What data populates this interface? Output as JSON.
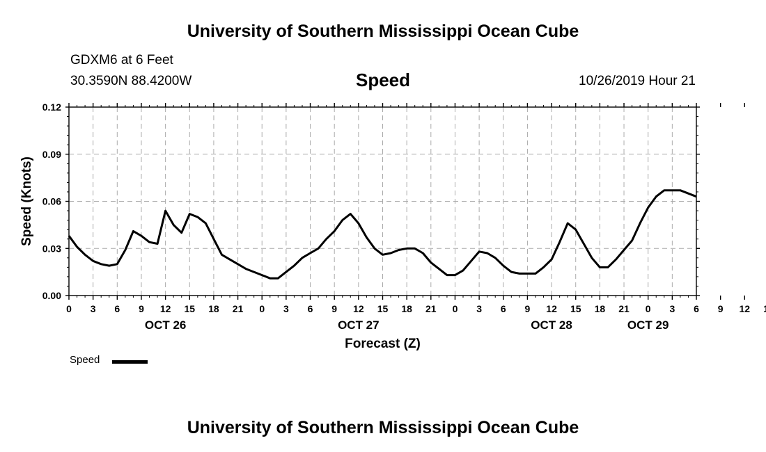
{
  "header": {
    "title": "University of Southern Mississippi Ocean Cube",
    "station": "GDXM6 at 6 Feet",
    "coordinates": "30.3590N 88.4200W",
    "variable": "Speed",
    "issued": "10/26/2019 Hour 21"
  },
  "footer": {
    "title": "University of Southern Mississippi Ocean Cube"
  },
  "legend": {
    "label": "Speed"
  },
  "chart_data": {
    "type": "line",
    "title": "Speed",
    "xlabel": "Forecast (Z)",
    "ylabel": "Speed (Knots)",
    "ylim": [
      0,
      0.12
    ],
    "y_ticks": [
      "0.00",
      "0.03",
      "0.06",
      "0.09",
      "0.12"
    ],
    "xlim_hours": [
      0,
      78
    ],
    "x_tick_labels": [
      "0",
      "3",
      "6",
      "9",
      "12",
      "15",
      "18",
      "21",
      "0",
      "3",
      "6",
      "9",
      "12",
      "15",
      "18",
      "21",
      "0",
      "3",
      "6",
      "9",
      "12",
      "15",
      "18",
      "21",
      "0",
      "3",
      "6",
      "9",
      "12",
      "15",
      "18",
      "21",
      "0",
      "3",
      "6"
    ],
    "date_labels": [
      {
        "label": "OCT 26",
        "hour": 12
      },
      {
        "label": "OCT 27",
        "hour": 36
      },
      {
        "label": "OCT 28",
        "hour": 60
      },
      {
        "label": "OCT 29",
        "hour": 72
      }
    ],
    "grid": true,
    "grid_style": "dashed",
    "line_color": "#000000",
    "series": [
      {
        "name": "Speed",
        "x": [
          0,
          1,
          2,
          3,
          4,
          5,
          6,
          7,
          8,
          9,
          10,
          11,
          12,
          13,
          14,
          15,
          16,
          17,
          18,
          19,
          20,
          21,
          22,
          23,
          24,
          25,
          26,
          27,
          28,
          29,
          30,
          31,
          32,
          33,
          34,
          35,
          36,
          37,
          38,
          39,
          40,
          41,
          42,
          43,
          44,
          45,
          46,
          47,
          48,
          49,
          50,
          51,
          52,
          53,
          54,
          55,
          56,
          57,
          58,
          59,
          60,
          61,
          62,
          63,
          64,
          65,
          66,
          67,
          68,
          69,
          70,
          71,
          72,
          73,
          74,
          75,
          76,
          77,
          78
        ],
        "y": [
          0.038,
          0.031,
          0.026,
          0.022,
          0.02,
          0.019,
          0.02,
          0.029,
          0.041,
          0.038,
          0.034,
          0.033,
          0.054,
          0.045,
          0.04,
          0.052,
          0.05,
          0.046,
          0.036,
          0.026,
          0.023,
          0.02,
          0.017,
          0.015,
          0.013,
          0.011,
          0.011,
          0.015,
          0.019,
          0.024,
          0.027,
          0.03,
          0.036,
          0.041,
          0.048,
          0.052,
          0.046,
          0.037,
          0.03,
          0.026,
          0.027,
          0.029,
          0.03,
          0.03,
          0.027,
          0.021,
          0.017,
          0.013,
          0.013,
          0.016,
          0.022,
          0.028,
          0.027,
          0.024,
          0.019,
          0.015,
          0.014,
          0.014,
          0.014,
          0.018,
          0.023,
          0.034,
          0.046,
          0.042,
          0.033,
          0.024,
          0.018,
          0.018,
          0.023,
          0.029,
          0.035,
          0.046,
          0.056,
          0.063,
          0.067,
          0.067,
          0.067,
          0.065,
          0.063
        ]
      }
    ]
  }
}
